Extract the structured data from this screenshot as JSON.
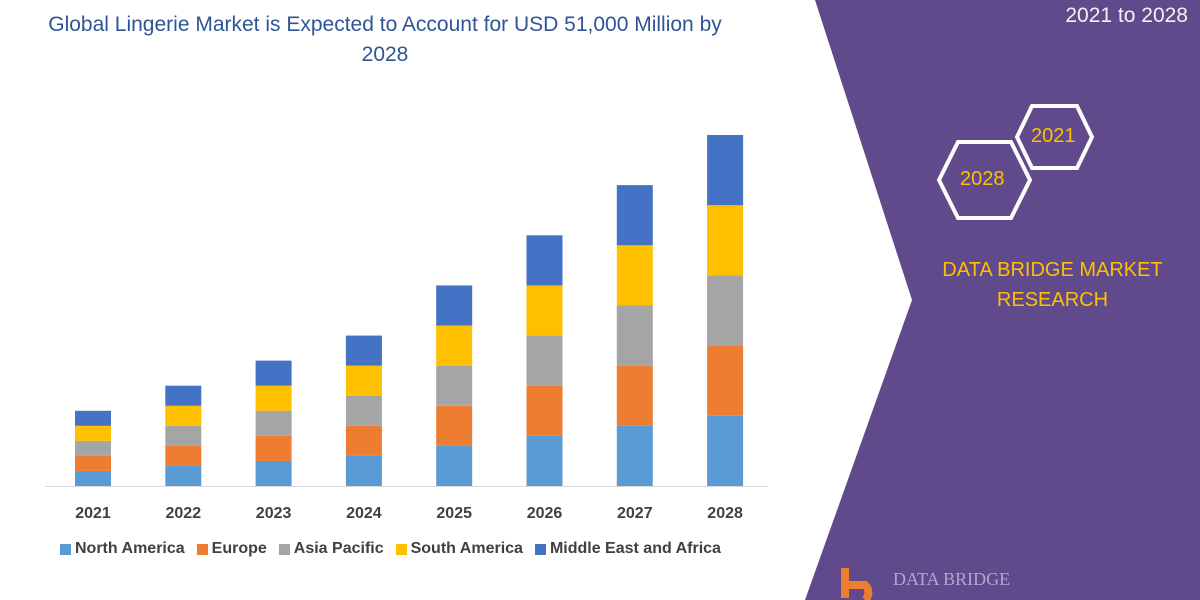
{
  "header": {
    "title": "Global Lingerie Market is Expected to Account for USD 51,000 Million by 2028"
  },
  "panel": {
    "period": "2021 to 2028",
    "hex_labels": [
      "2021",
      "2028"
    ],
    "brand": "DATA BRIDGE MARKET RESEARCH",
    "logo_text": "DATA BRIDGE",
    "color": "#604a8c",
    "accent": "#ffc000"
  },
  "chart_data": {
    "type": "bar",
    "stacked": true,
    "title": "Global Lingerie Market is Expected to Account for USD 51,000 Million by 2028",
    "categories": [
      "2021",
      "2022",
      "2023",
      "2024",
      "2025",
      "2026",
      "2027",
      "2028"
    ],
    "series": [
      {
        "name": "North America",
        "color": "#5b9bd5",
        "values": [
          15,
          20,
          25,
          30,
          40,
          50,
          60,
          70
        ]
      },
      {
        "name": "Europe",
        "color": "#ed7d31",
        "values": [
          15,
          20,
          25,
          30,
          40,
          50,
          60,
          70
        ]
      },
      {
        "name": "Asia Pacific",
        "color": "#a5a5a5",
        "values": [
          15,
          20,
          25,
          30,
          40,
          50,
          60,
          70
        ]
      },
      {
        "name": "South America",
        "color": "#ffc000",
        "values": [
          15,
          20,
          25,
          30,
          40,
          50,
          60,
          70
        ]
      },
      {
        "name": "Middle East and Africa",
        "color": "#4472c4",
        "values": [
          15,
          20,
          25,
          30,
          40,
          50,
          60,
          70
        ]
      }
    ],
    "xlabel": "",
    "ylabel": "",
    "grid": false,
    "legend": "bottom"
  }
}
